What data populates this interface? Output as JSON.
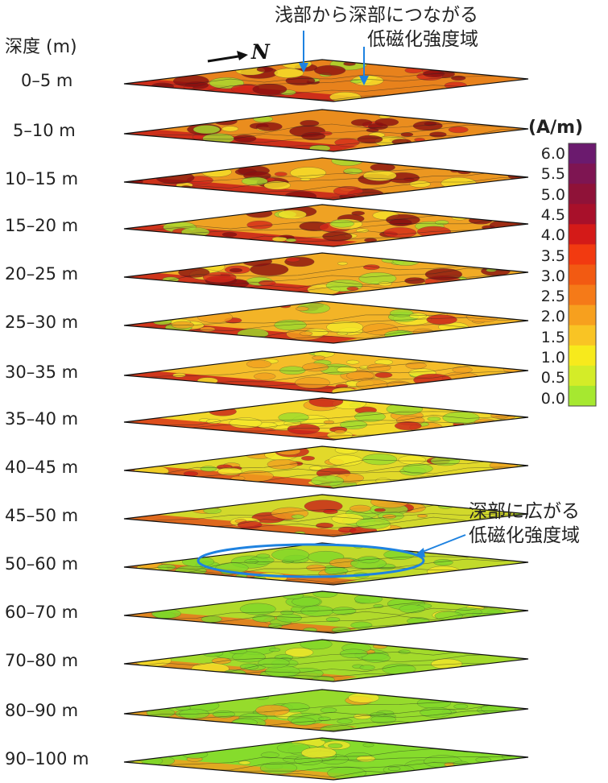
{
  "axis_label": "深度 (m)",
  "north_label": "N",
  "annotation_top": {
    "line1": "浅部から深部につながる",
    "line2": "低磁化強度域"
  },
  "annotation_mid": {
    "line1": "深部に広がる",
    "line2": "低磁化強度域"
  },
  "colorbar": {
    "unit": "(A/m)",
    "ticks": [
      "6.0",
      "5.5",
      "5.0",
      "4.5",
      "4.0",
      "3.5",
      "3.0",
      "2.5",
      "2.0",
      "1.5",
      "1.0",
      "0.5",
      "0.0"
    ],
    "colors_top_to_bottom": [
      "#6b1a6e",
      "#7e1552",
      "#8f1238",
      "#a8102a",
      "#d41a18",
      "#f23a10",
      "#f25a12",
      "#f57a18",
      "#f7a01e",
      "#f9c424",
      "#f7ea1c",
      "#d4ec28",
      "#a6e830"
    ]
  },
  "layers": [
    {
      "label": "0–5 m",
      "level": 0.0
    },
    {
      "label": "5–10 m",
      "level": 0.08
    },
    {
      "label": "10–15 m",
      "level": 0.16
    },
    {
      "label": "15–20 m",
      "level": 0.24
    },
    {
      "label": "20–25 m",
      "level": 0.31
    },
    {
      "label": "25–30 m",
      "level": 0.38
    },
    {
      "label": "30–35 m",
      "level": 0.45
    },
    {
      "label": "35–40 m",
      "level": 0.52
    },
    {
      "label": "40–45 m",
      "level": 0.59
    },
    {
      "label": "45–50 m",
      "level": 0.66
    },
    {
      "label": "50–60 m",
      "level": 0.73
    },
    {
      "label": "60–70 m",
      "level": 0.81
    },
    {
      "label": "70–80 m",
      "level": 0.87
    },
    {
      "label": "80–90 m",
      "level": 0.93
    },
    {
      "label": "90–100 m",
      "level": 1.0
    }
  ]
}
